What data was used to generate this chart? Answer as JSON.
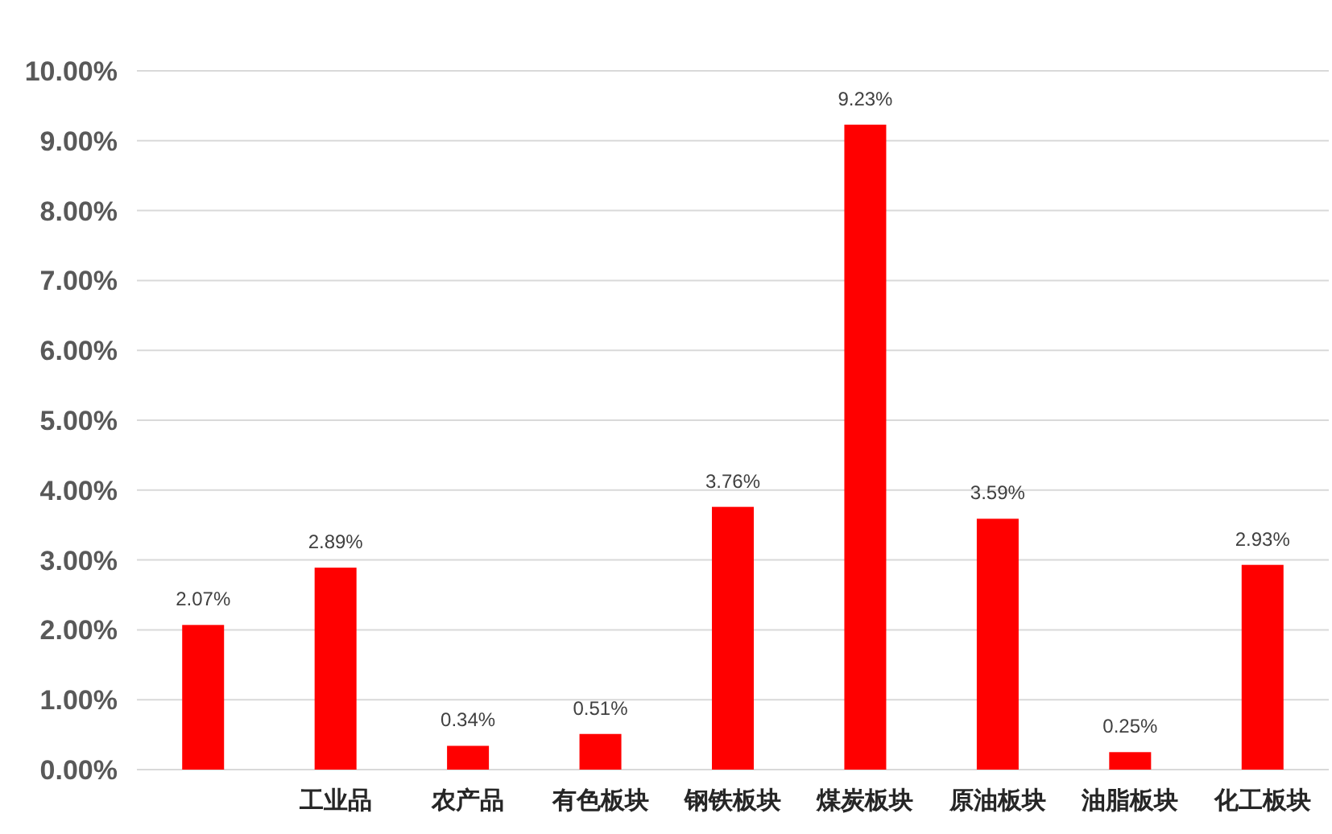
{
  "chart_data": {
    "type": "bar",
    "categories": [
      null,
      "工业品",
      "农产品",
      "有色板块",
      "钢铁板块",
      "煤炭板块",
      "原油板块",
      "油脂板块",
      "化工板块"
    ],
    "values": [
      2.07,
      2.89,
      0.34,
      0.51,
      3.76,
      9.23,
      3.59,
      0.25,
      2.93
    ],
    "value_labels": [
      "2.07%",
      "2.89%",
      "0.34%",
      "0.51%",
      "3.76%",
      "9.23%",
      "3.59%",
      "0.25%",
      "2.93%"
    ],
    "color": "#ff0000",
    "ylim": [
      0,
      10
    ],
    "yticks": [
      {
        "value": 0,
        "label": "0.00%"
      },
      {
        "value": 1,
        "label": "1.00%"
      },
      {
        "value": 2,
        "label": "2.00%"
      },
      {
        "value": 3,
        "label": "3.00%"
      },
      {
        "value": 4,
        "label": "4.00%"
      },
      {
        "value": 5,
        "label": "5.00%"
      },
      {
        "value": 6,
        "label": "6.00%"
      },
      {
        "value": 7,
        "label": "7.00%"
      },
      {
        "value": 8,
        "label": "8.00%"
      },
      {
        "value": 9,
        "label": "9.00%"
      },
      {
        "value": 10,
        "label": "10.00%"
      }
    ],
    "grid": "y"
  }
}
